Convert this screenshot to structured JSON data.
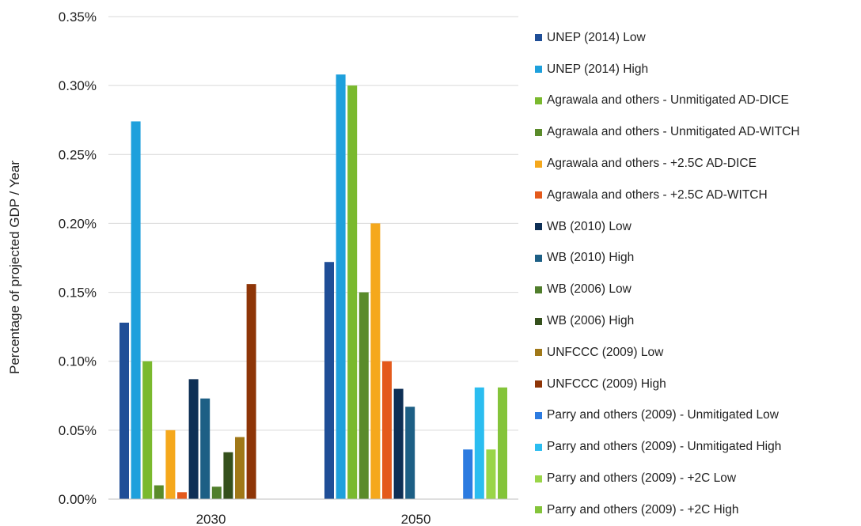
{
  "chart_data": {
    "type": "bar",
    "title": "",
    "xlabel": "",
    "ylabel": "Percentage of projected GDP / Year",
    "ylim": [
      0,
      0.35
    ],
    "yticks": [
      "0.00%",
      "0.05%",
      "0.10%",
      "0.15%",
      "0.20%",
      "0.25%",
      "0.30%",
      "0.35%"
    ],
    "grid": true,
    "legend_position": "right",
    "categories": [
      "2030",
      "2050"
    ],
    "series": [
      {
        "name": "UNEP (2014) Low",
        "color": "#1f4e97",
        "values": [
          0.128,
          0.172
        ]
      },
      {
        "name": "UNEP (2014) High",
        "color": "#1ea0dc",
        "values": [
          0.274,
          0.308
        ]
      },
      {
        "name": "Agrawala and others - Unmitigated AD-DICE",
        "color": "#7ab92e",
        "values": [
          0.1,
          0.3
        ]
      },
      {
        "name": "Agrawala and others - Unmitigated AD-WITCH",
        "color": "#5a8b2a",
        "values": [
          0.01,
          0.15
        ]
      },
      {
        "name": "Agrawala and others - +2.5C AD-DICE",
        "color": "#f5a81c",
        "values": [
          0.05,
          0.2
        ]
      },
      {
        "name": "Agrawala and others - +2.5C AD-WITCH",
        "color": "#e45a1c",
        "values": [
          0.005,
          0.1
        ]
      },
      {
        "name": "WB (2010) Low",
        "color": "#0e2f55",
        "values": [
          0.087,
          0.08
        ]
      },
      {
        "name": "WB (2010) High",
        "color": "#1d5f85",
        "values": [
          0.073,
          0.067
        ]
      },
      {
        "name": "WB (2006) Low",
        "color": "#507e2c",
        "values": [
          0.009,
          null
        ]
      },
      {
        "name": "WB (2006) High",
        "color": "#35501c",
        "values": [
          0.034,
          null
        ]
      },
      {
        "name": "UNFCCC (2009) Low",
        "color": "#a07818",
        "values": [
          0.045,
          null
        ]
      },
      {
        "name": "UNFCCC (2009) High",
        "color": "#8e3507",
        "values": [
          0.156,
          null
        ]
      },
      {
        "name": "Parry and others (2009) - Unmitigated Low",
        "color": "#2c7be0",
        "values": [
          null,
          0.036
        ]
      },
      {
        "name": "Parry and others (2009) - Unmitigated High",
        "color": "#2bbdf0",
        "values": [
          null,
          0.081
        ]
      },
      {
        "name": "Parry and others (2009) - +2C Low",
        "color": "#9ad548",
        "values": [
          null,
          0.036
        ]
      },
      {
        "name": "Parry and others (2009) - +2C High",
        "color": "#84c43a",
        "values": [
          null,
          0.081
        ]
      }
    ]
  }
}
